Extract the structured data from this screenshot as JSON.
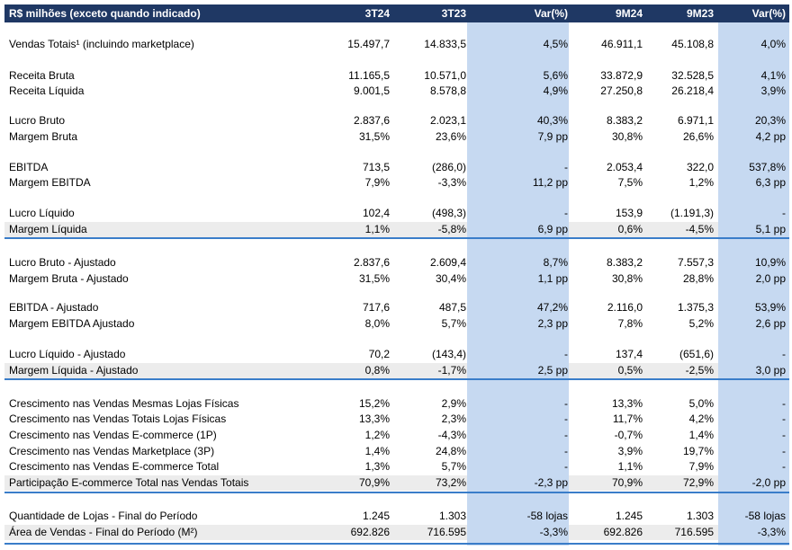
{
  "header": [
    "R$ milhões (exceto quando indicado)",
    "3T24",
    "3T23",
    "Var(%)",
    "9M24",
    "9M23",
    "Var(%)"
  ],
  "rows": [
    {
      "cells": [
        "Vendas Totais¹ (incluindo marketplace)",
        "15.497,7",
        "14.833,5",
        "4,5%",
        "46.911,1",
        "45.108,8",
        "4,0%"
      ],
      "shade": false
    },
    {
      "cells": [
        "Receita Bruta",
        "11.165,5",
        "10.571,0",
        "5,6%",
        "33.872,9",
        "32.528,5",
        "4,1%"
      ],
      "shade": false
    },
    {
      "cells": [
        "Receita Líquida",
        "9.001,5",
        "8.578,8",
        "4,9%",
        "27.250,8",
        "26.218,4",
        "3,9%"
      ],
      "shade": false
    },
    {
      "cells": [
        "Lucro Bruto",
        "2.837,6",
        "2.023,1",
        "40,3%",
        "8.383,2",
        "6.971,1",
        "20,3%"
      ],
      "shade": false
    },
    {
      "cells": [
        "Margem Bruta",
        "31,5%",
        "23,6%",
        "7,9 pp",
        "30,8%",
        "26,6%",
        "4,2 pp"
      ],
      "shade": false
    },
    {
      "cells": [
        "EBITDA",
        "713,5",
        "(286,0)",
        "-",
        "2.053,4",
        "322,0",
        "537,8%"
      ],
      "shade": false
    },
    {
      "cells": [
        "Margem EBITDA",
        "7,9%",
        "-3,3%",
        "11,2 pp",
        "7,5%",
        "1,2%",
        "6,3 pp"
      ],
      "shade": false
    },
    {
      "cells": [
        "Lucro Líquido",
        "102,4",
        "(498,3)",
        "-",
        "153,9",
        "(1.191,3)",
        "-"
      ],
      "shade": false
    },
    {
      "cells": [
        "Margem Líquida",
        "1,1%",
        "-5,8%",
        "6,9 pp",
        "0,6%",
        "-4,5%",
        "5,1 pp"
      ],
      "shade": true
    },
    {
      "cells": [
        "Lucro Bruto - Ajustado",
        "2.837,6",
        "2.609,4",
        "8,7%",
        "8.383,2",
        "7.557,3",
        "10,9%"
      ],
      "shade": false
    },
    {
      "cells": [
        "Margem Bruta - Ajustado",
        "31,5%",
        "30,4%",
        "1,1 pp",
        "30,8%",
        "28,8%",
        "2,0 pp"
      ],
      "shade": false
    },
    {
      "cells": [
        "EBITDA - Ajustado",
        "717,6",
        "487,5",
        "47,2%",
        "2.116,0",
        "1.375,3",
        "53,9%"
      ],
      "shade": false
    },
    {
      "cells": [
        "Margem EBITDA Ajustado",
        "8,0%",
        "5,7%",
        "2,3 pp",
        "7,8%",
        "5,2%",
        "2,6 pp"
      ],
      "shade": false
    },
    {
      "cells": [
        "Lucro Líquido - Ajustado",
        "70,2",
        "(143,4)",
        "-",
        "137,4",
        "(651,6)",
        "-"
      ],
      "shade": false
    },
    {
      "cells": [
        "Margem Líquida - Ajustado",
        "0,8%",
        "-1,7%",
        "2,5 pp",
        "0,5%",
        "-2,5%",
        "3,0 pp"
      ],
      "shade": true
    },
    {
      "cells": [
        "Crescimento nas Vendas Mesmas Lojas Físicas",
        "15,2%",
        "2,9%",
        "-",
        "13,3%",
        "5,0%",
        "-"
      ],
      "shade": false
    },
    {
      "cells": [
        "Crescimento nas Vendas Totais Lojas Físicas",
        "13,3%",
        "2,3%",
        "-",
        "11,7%",
        "4,2%",
        "-"
      ],
      "shade": false
    },
    {
      "cells": [
        "Crescimento nas Vendas E-commerce (1P)",
        "1,2%",
        "-4,3%",
        "-",
        "-0,7%",
        "1,4%",
        "-"
      ],
      "shade": false
    },
    {
      "cells": [
        "Crescimento nas Vendas Marketplace (3P)",
        "1,4%",
        "24,8%",
        "-",
        "3,9%",
        "19,7%",
        "-"
      ],
      "shade": false
    },
    {
      "cells": [
        "Crescimento nas Vendas E-commerce Total",
        "1,3%",
        "5,7%",
        "-",
        "1,1%",
        "7,9%",
        "-"
      ],
      "shade": false
    },
    {
      "cells": [
        "Participação E-commerce Total nas Vendas Totais",
        "70,9%",
        "73,2%",
        "-2,3 pp",
        "70,9%",
        "72,9%",
        "-2,0 pp"
      ],
      "shade": true
    },
    {
      "cells": [
        "Quantidade de Lojas - Final do Período",
        "1.245",
        "1.303",
        "-58 lojas",
        "1.245",
        "1.303",
        "-58 lojas"
      ],
      "shade": false
    },
    {
      "cells": [
        "Área de Vendas - Final do Período (M²)",
        "692.826",
        "716.595",
        "-3,3%",
        "692.826",
        "716.595",
        "-3,3%"
      ],
      "shade": true
    }
  ]
}
